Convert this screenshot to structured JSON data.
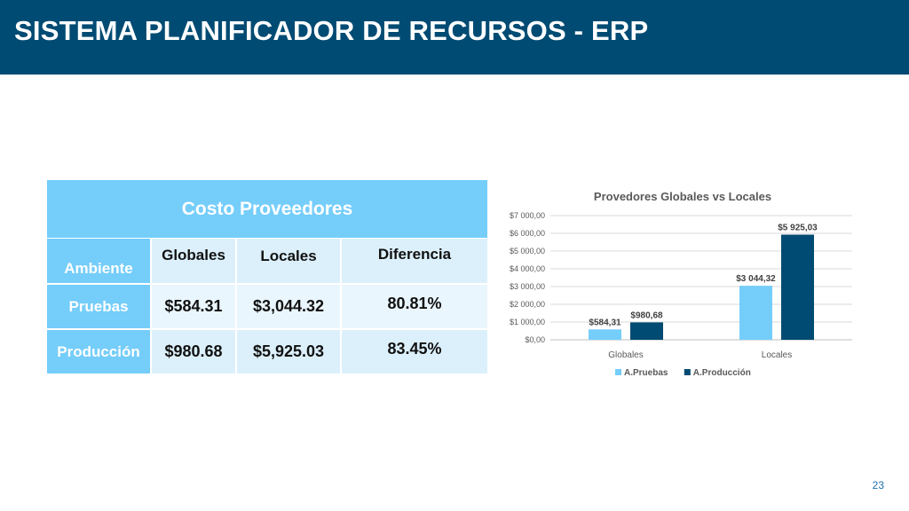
{
  "slide": {
    "title": "SISTEMA PLANIFICADOR DE RECURSOS - ERP",
    "page_number": "23"
  },
  "table": {
    "title": "Costo Proveedores",
    "headers": [
      "Ambiente",
      "Globales",
      "Locales",
      "Diferencia"
    ],
    "rows": [
      {
        "label": "Pruebas",
        "globales": "$584.31",
        "locales": "$3,044.32",
        "diferencia": "80.81%"
      },
      {
        "label": "Producción",
        "globales": "$980.68",
        "locales": "$5,925.03",
        "diferencia": "83.45%"
      }
    ]
  },
  "chart_data": {
    "type": "bar",
    "title": "Provedores Globales vs Locales",
    "categories": [
      "Globales",
      "Locales"
    ],
    "series": [
      {
        "name": "A.Pruebas",
        "values": [
          584.31,
          3044.32
        ],
        "labels": [
          "$584,31",
          "$3 044,32"
        ],
        "color": "#75cdfa"
      },
      {
        "name": "A.Producción",
        "values": [
          980.68,
          5925.03
        ],
        "labels": [
          "$980,68",
          "$5 925,03"
        ],
        "color": "#004b73"
      }
    ],
    "ylim": [
      0,
      7000
    ],
    "yticks": [
      0,
      1000,
      2000,
      3000,
      4000,
      5000,
      6000,
      7000
    ],
    "ytick_labels": [
      "$0,00",
      "$1 000,00",
      "$2 000,00",
      "$3 000,00",
      "$4 000,00",
      "$5 000,00",
      "$6 000,00",
      "$7 000,00"
    ],
    "grid": true,
    "legend_position": "bottom",
    "xlabel": "",
    "ylabel": ""
  }
}
